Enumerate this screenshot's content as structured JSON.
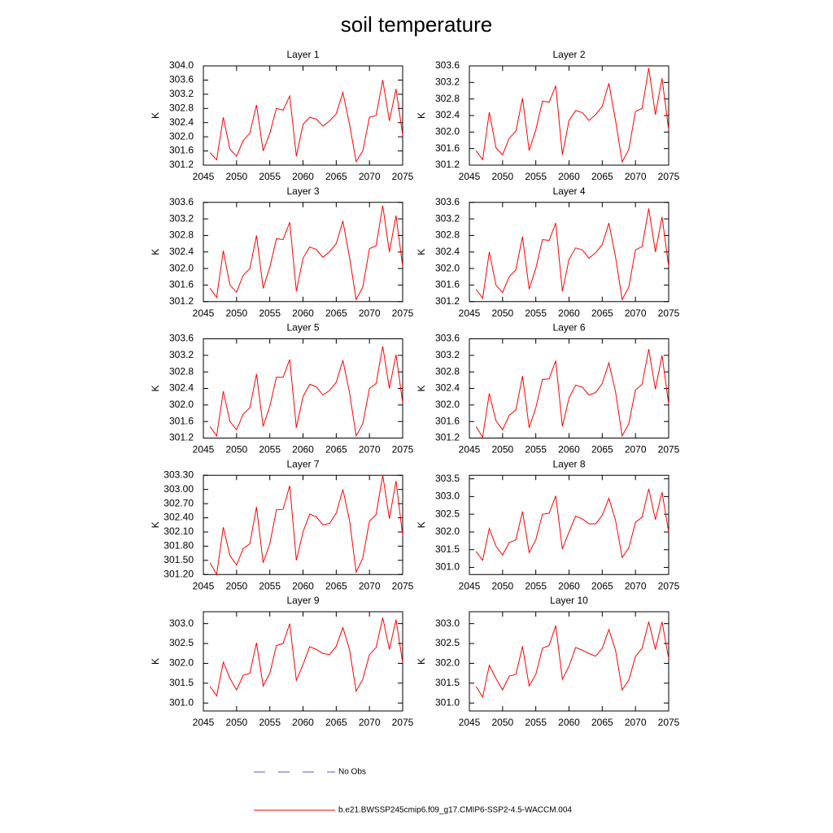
{
  "title": "soil temperature",
  "legend": [
    {
      "name": "No Obs",
      "color": "#5a5ac8",
      "dash": true
    },
    {
      "name": "b.e21.BWSSP245cmip6.f09_g17.CMIP6-SSP2-4.5-WACCM.004",
      "color": "#ff0000",
      "dash": false
    }
  ],
  "chart_data": [
    {
      "type": "line",
      "title": "Layer 1",
      "ylabel": "K",
      "color": "#ff0000",
      "x": [
        2046,
        2047,
        2048,
        2049,
        2050,
        2051,
        2052,
        2053,
        2054,
        2055,
        2056,
        2057,
        2058,
        2059,
        2060,
        2061,
        2062,
        2063,
        2064,
        2065,
        2066,
        2067,
        2068,
        2069,
        2070,
        2071,
        2072,
        2073,
        2074,
        2075
      ],
      "values": [
        301.55,
        301.35,
        302.55,
        301.65,
        301.45,
        301.9,
        302.1,
        302.9,
        301.6,
        302.1,
        302.8,
        302.75,
        303.15,
        301.45,
        302.35,
        302.55,
        302.5,
        302.3,
        302.45,
        302.65,
        303.25,
        302.35,
        301.3,
        301.6,
        302.55,
        302.6,
        303.6,
        302.45,
        303.35,
        302.05
      ],
      "xlim": [
        2045,
        2075
      ],
      "xticks": [
        2045,
        2050,
        2055,
        2060,
        2065,
        2070,
        2075
      ],
      "ylim": [
        301.2,
        304.0
      ],
      "yticks": [
        301.2,
        301.6,
        {
          "value": 302,
          "label": "302.0"
        },
        302.4,
        302.8,
        303.2,
        303.6,
        {
          "value": 304,
          "label": "304.0"
        }
      ]
    },
    {
      "type": "line",
      "title": "Layer 2",
      "ylabel": "K",
      "color": "#ff0000",
      "x": [
        2046,
        2047,
        2048,
        2049,
        2050,
        2051,
        2052,
        2053,
        2054,
        2055,
        2056,
        2057,
        2058,
        2059,
        2060,
        2061,
        2062,
        2063,
        2064,
        2065,
        2066,
        2067,
        2068,
        2069,
        2070,
        2071,
        2072,
        2073,
        2074,
        2075
      ],
      "values": [
        301.55,
        301.33,
        302.48,
        301.62,
        301.45,
        301.85,
        302.02,
        302.82,
        301.55,
        302.05,
        302.75,
        302.72,
        303.12,
        301.45,
        302.28,
        302.52,
        302.47,
        302.28,
        302.42,
        302.62,
        303.18,
        302.28,
        301.28,
        301.58,
        302.5,
        302.57,
        303.55,
        302.42,
        303.3,
        302.05
      ],
      "xlim": [
        2045,
        2075
      ],
      "xticks": [
        2045,
        2050,
        2055,
        2060,
        2065,
        2070,
        2075
      ],
      "ylim": [
        301.2,
        303.6
      ],
      "yticks": [
        301.2,
        301.6,
        {
          "value": 302,
          "label": "302.0"
        },
        302.4,
        302.8,
        303.2,
        303.6
      ]
    },
    {
      "type": "line",
      "title": "Layer 3",
      "ylabel": "K",
      "color": "#ff0000",
      "x": [
        2046,
        2047,
        2048,
        2049,
        2050,
        2051,
        2052,
        2053,
        2054,
        2055,
        2056,
        2057,
        2058,
        2059,
        2060,
        2061,
        2062,
        2063,
        2064,
        2065,
        2066,
        2067,
        2068,
        2069,
        2070,
        2071,
        2072,
        2073,
        2074,
        2075
      ],
      "values": [
        301.52,
        301.3,
        302.43,
        301.6,
        301.43,
        301.84,
        302.0,
        302.8,
        301.52,
        302.03,
        302.72,
        302.7,
        303.12,
        301.45,
        302.25,
        302.52,
        302.46,
        302.27,
        302.41,
        302.6,
        303.15,
        302.27,
        301.25,
        301.55,
        302.48,
        302.55,
        303.52,
        302.4,
        303.28,
        302.05
      ],
      "xlim": [
        2045,
        2075
      ],
      "xticks": [
        2045,
        2050,
        2055,
        2060,
        2065,
        2070,
        2075
      ],
      "ylim": [
        301.2,
        303.6
      ],
      "yticks": [
        301.2,
        301.6,
        {
          "value": 302,
          "label": "302.0"
        },
        302.4,
        302.8,
        303.2,
        303.6
      ]
    },
    {
      "type": "line",
      "title": "Layer 4",
      "ylabel": "K",
      "color": "#ff0000",
      "x": [
        2046,
        2047,
        2048,
        2049,
        2050,
        2051,
        2052,
        2053,
        2054,
        2055,
        2056,
        2057,
        2058,
        2059,
        2060,
        2061,
        2062,
        2063,
        2064,
        2065,
        2066,
        2067,
        2068,
        2069,
        2070,
        2071,
        2072,
        2073,
        2074,
        2075
      ],
      "values": [
        301.5,
        301.28,
        302.4,
        301.6,
        301.42,
        301.8,
        301.97,
        302.77,
        301.5,
        302.0,
        302.7,
        302.68,
        303.1,
        301.45,
        302.22,
        302.5,
        302.45,
        302.25,
        302.38,
        302.58,
        303.1,
        302.28,
        301.25,
        301.55,
        302.45,
        302.53,
        303.45,
        302.4,
        303.25,
        302.05
      ],
      "xlim": [
        2045,
        2075
      ],
      "xticks": [
        2045,
        2050,
        2055,
        2060,
        2065,
        2070,
        2075
      ],
      "ylim": [
        301.2,
        303.6
      ],
      "yticks": [
        301.2,
        301.6,
        {
          "value": 302,
          "label": "302.0"
        },
        302.4,
        302.8,
        303.2,
        303.6
      ]
    },
    {
      "type": "line",
      "title": "Layer 5",
      "ylabel": "K",
      "color": "#ff0000",
      "x": [
        2046,
        2047,
        2048,
        2049,
        2050,
        2051,
        2052,
        2053,
        2054,
        2055,
        2056,
        2057,
        2058,
        2059,
        2060,
        2061,
        2062,
        2063,
        2064,
        2065,
        2066,
        2067,
        2068,
        2069,
        2070,
        2071,
        2072,
        2073,
        2074,
        2075
      ],
      "values": [
        301.48,
        301.25,
        302.33,
        301.6,
        301.4,
        301.78,
        301.93,
        302.75,
        301.48,
        301.97,
        302.67,
        302.67,
        303.1,
        301.45,
        302.2,
        302.5,
        302.44,
        302.24,
        302.35,
        302.55,
        303.08,
        302.3,
        301.25,
        301.55,
        302.4,
        302.52,
        303.42,
        302.4,
        303.22,
        302.05
      ],
      "xlim": [
        2045,
        2075
      ],
      "xticks": [
        2045,
        2050,
        2055,
        2060,
        2065,
        2070,
        2075
      ],
      "ylim": [
        301.2,
        303.6
      ],
      "yticks": [
        301.2,
        301.6,
        {
          "value": 302,
          "label": "302.0"
        },
        302.4,
        302.8,
        303.2,
        303.6
      ]
    },
    {
      "type": "line",
      "title": "Layer 6",
      "ylabel": "K",
      "color": "#ff0000",
      "x": [
        2046,
        2047,
        2048,
        2049,
        2050,
        2051,
        2052,
        2053,
        2054,
        2055,
        2056,
        2057,
        2058,
        2059,
        2060,
        2061,
        2062,
        2063,
        2064,
        2065,
        2066,
        2067,
        2068,
        2069,
        2070,
        2071,
        2072,
        2073,
        2074,
        2075
      ],
      "values": [
        301.48,
        301.22,
        302.28,
        301.62,
        301.4,
        301.75,
        301.88,
        302.7,
        301.45,
        301.93,
        302.62,
        302.63,
        303.07,
        301.48,
        302.17,
        302.48,
        302.43,
        302.24,
        302.3,
        302.52,
        303.02,
        302.32,
        301.25,
        301.55,
        302.36,
        302.5,
        303.35,
        302.38,
        303.2,
        302.02
      ],
      "xlim": [
        2045,
        2075
      ],
      "xticks": [
        2045,
        2050,
        2055,
        2060,
        2065,
        2070,
        2075
      ],
      "ylim": [
        301.2,
        303.6
      ],
      "yticks": [
        301.2,
        301.6,
        {
          "value": 302,
          "label": "302.0"
        },
        302.4,
        302.8,
        303.2,
        303.6
      ]
    },
    {
      "type": "line",
      "title": "Layer 7",
      "ylabel": "K",
      "color": "#ff0000",
      "x": [
        2046,
        2047,
        2048,
        2049,
        2050,
        2051,
        2052,
        2053,
        2054,
        2055,
        2056,
        2057,
        2058,
        2059,
        2060,
        2061,
        2062,
        2063,
        2064,
        2065,
        2066,
        2067,
        2068,
        2069,
        2070,
        2071,
        2072,
        2073,
        2074,
        2075
      ],
      "values": [
        301.45,
        301.2,
        302.2,
        301.6,
        301.4,
        301.75,
        301.85,
        302.63,
        301.45,
        301.85,
        302.57,
        302.58,
        303.08,
        301.5,
        302.1,
        302.48,
        302.42,
        302.25,
        302.28,
        302.5,
        303.0,
        302.35,
        301.25,
        301.55,
        302.33,
        302.47,
        303.3,
        302.38,
        303.18,
        302.02
      ],
      "xlim": [
        2045,
        2075
      ],
      "xticks": [
        2045,
        2050,
        2055,
        2060,
        2065,
        2070,
        2075
      ],
      "ylim": [
        301.2,
        303.3
      ],
      "yticks": [
        {
          "value": 301.2,
          "label": "301.20"
        },
        {
          "value": 301.5,
          "label": "301.50"
        },
        {
          "value": 301.8,
          "label": "301.80"
        },
        {
          "value": 302.1,
          "label": "302.10"
        },
        {
          "value": 302.4,
          "label": "302.40"
        },
        {
          "value": 302.7,
          "label": "302.70"
        },
        {
          "value": 303,
          "label": "303.00"
        },
        {
          "value": 303.3,
          "label": "303.30"
        }
      ]
    },
    {
      "type": "line",
      "title": "Layer 8",
      "ylabel": "K",
      "color": "#ff0000",
      "x": [
        2046,
        2047,
        2048,
        2049,
        2050,
        2051,
        2052,
        2053,
        2054,
        2055,
        2056,
        2057,
        2058,
        2059,
        2060,
        2061,
        2062,
        2063,
        2064,
        2065,
        2066,
        2067,
        2068,
        2069,
        2070,
        2071,
        2072,
        2073,
        2074,
        2075
      ],
      "values": [
        301.45,
        301.2,
        302.1,
        301.6,
        301.35,
        301.7,
        301.78,
        302.58,
        301.42,
        301.78,
        302.5,
        302.53,
        303.02,
        301.52,
        302.0,
        302.45,
        302.37,
        302.23,
        302.23,
        302.47,
        302.95,
        302.33,
        301.28,
        301.55,
        302.27,
        302.42,
        303.22,
        302.35,
        303.12,
        302.0
      ],
      "xlim": [
        2045,
        2075
      ],
      "xticks": [
        2045,
        2050,
        2055,
        2060,
        2065,
        2070,
        2075
      ],
      "ylim": [
        300.8,
        303.6
      ],
      "yticks": [
        {
          "value": 301,
          "label": "301.0"
        },
        301.5,
        {
          "value": 302,
          "label": "302.0"
        },
        302.5,
        {
          "value": 303,
          "label": "303.0"
        },
        303.5
      ]
    },
    {
      "type": "line",
      "title": "Layer 9",
      "ylabel": "K",
      "color": "#ff0000",
      "x": [
        2046,
        2047,
        2048,
        2049,
        2050,
        2051,
        2052,
        2053,
        2054,
        2055,
        2056,
        2057,
        2058,
        2059,
        2060,
        2061,
        2062,
        2063,
        2064,
        2065,
        2066,
        2067,
        2068,
        2069,
        2070,
        2071,
        2072,
        2073,
        2074,
        2075
      ],
      "values": [
        301.42,
        301.18,
        302.03,
        301.62,
        301.33,
        301.7,
        301.75,
        302.52,
        301.43,
        301.75,
        302.45,
        302.5,
        303.0,
        301.57,
        301.97,
        302.42,
        302.35,
        302.25,
        302.22,
        302.43,
        302.9,
        302.35,
        301.3,
        301.6,
        302.22,
        302.4,
        303.15,
        302.35,
        303.1,
        302.02
      ],
      "xlim": [
        2045,
        2075
      ],
      "xticks": [
        2045,
        2050,
        2055,
        2060,
        2065,
        2070,
        2075
      ],
      "ylim": [
        300.8,
        303.3
      ],
      "yticks": [
        {
          "value": 301,
          "label": "301.0"
        },
        301.5,
        {
          "value": 302,
          "label": "302.0"
        },
        302.5,
        {
          "value": 303,
          "label": "303.0"
        }
      ]
    },
    {
      "type": "line",
      "title": "Layer 10",
      "ylabel": "K",
      "color": "#ff0000",
      "x": [
        2046,
        2047,
        2048,
        2049,
        2050,
        2051,
        2052,
        2053,
        2054,
        2055,
        2056,
        2057,
        2058,
        2059,
        2060,
        2061,
        2062,
        2063,
        2064,
        2065,
        2066,
        2067,
        2068,
        2069,
        2070,
        2071,
        2072,
        2073,
        2074,
        2075
      ],
      "values": [
        301.42,
        301.15,
        301.95,
        301.62,
        301.33,
        301.68,
        301.72,
        302.43,
        301.43,
        301.72,
        302.38,
        302.45,
        302.95,
        301.6,
        301.93,
        302.4,
        302.33,
        302.25,
        302.18,
        302.38,
        302.85,
        302.33,
        301.33,
        301.58,
        302.17,
        302.38,
        303.05,
        302.35,
        303.05,
        302.12
      ],
      "xlim": [
        2045,
        2075
      ],
      "xticks": [
        2045,
        2050,
        2055,
        2060,
        2065,
        2070,
        2075
      ],
      "ylim": [
        300.8,
        303.3
      ],
      "yticks": [
        {
          "value": 301,
          "label": "301.0"
        },
        301.5,
        {
          "value": 302,
          "label": "302.0"
        },
        302.5,
        {
          "value": 303,
          "label": "303.0"
        }
      ]
    }
  ]
}
